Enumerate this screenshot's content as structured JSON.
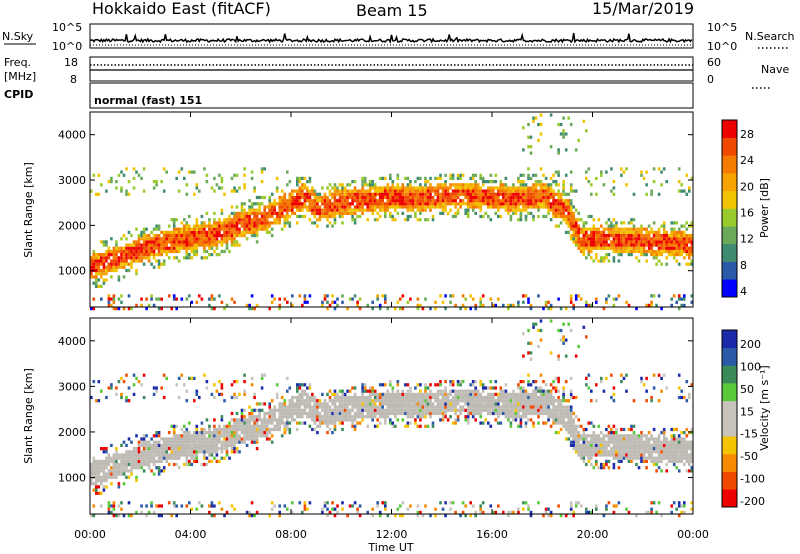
{
  "header": {
    "station": "Hokkaido East (fitACF)",
    "beam": "Beam 15",
    "date": "15/Mar/2019"
  },
  "top_panels": {
    "nsky_label": "N.Sky",
    "nsky_ticks": [
      "10^5",
      "10^0"
    ],
    "nsearch_label": "N.Search",
    "nsearch_ticks": [
      "10^5",
      "10^0"
    ],
    "freq_label_line1": "Freq.",
    "freq_label_line2": "[MHz]",
    "freq_ticks": [
      "18",
      "8"
    ],
    "nave_label": "Nave",
    "nave_ticks": [
      "60",
      "0"
    ],
    "cpid_label": "CPID",
    "cpid_text": "normal (fast) 151"
  },
  "colors": {
    "power_scale": [
      "#0000ff",
      "#2a5aa8",
      "#3f8b6f",
      "#6aa95a",
      "#9acb2c",
      "#f2c400",
      "#f6a200",
      "#f47a00",
      "#f04a00",
      "#ee0000"
    ],
    "velocity_scale": [
      "#ee0000",
      "#f04a00",
      "#f68a00",
      "#f4c400",
      "#c8c4bc",
      "#c8c4bc",
      "#59c93a",
      "#3a8a5a",
      "#2a5aa8",
      "#1a2aa8"
    ],
    "ground_scatter": "#bebab4"
  },
  "chart_data": [
    {
      "type": "heatmap",
      "name": "power",
      "xlabel": "",
      "ylabel": "Slant Range [km]",
      "yticks": [
        1000,
        2000,
        3000,
        4000
      ],
      "ylim": [
        200,
        4500
      ],
      "xlim_hours": [
        0,
        24
      ],
      "colorbar_label": "Power [dB]",
      "colorbar_ticks": [
        "28",
        "24",
        "20",
        "16",
        "12",
        "8",
        "4"
      ],
      "colorbar_range": [
        0,
        30
      ],
      "band_trace": {
        "hours": [
          0,
          1,
          2,
          3,
          4,
          5,
          6,
          7,
          8,
          8.5,
          9,
          10,
          11,
          12,
          13,
          14,
          15,
          16,
          17,
          18,
          18.5,
          19,
          19.5,
          20,
          21,
          22,
          23,
          24
        ],
        "range_km": [
          1100,
          1300,
          1500,
          1650,
          1750,
          1850,
          2050,
          2250,
          2500,
          2700,
          2400,
          2550,
          2600,
          2650,
          2600,
          2700,
          2700,
          2650,
          2600,
          2700,
          2500,
          2300,
          1700,
          1750,
          1700,
          1700,
          1650,
          1600
        ]
      }
    },
    {
      "type": "heatmap",
      "name": "velocity",
      "xlabel": "Time UT",
      "ylabel": "Slant Range [km]",
      "yticks": [
        1000,
        2000,
        3000,
        4000
      ],
      "ylim": [
        200,
        4500
      ],
      "xticks": [
        "00:00",
        "04:00",
        "08:00",
        "12:00",
        "16:00",
        "20:00",
        "00:00"
      ],
      "xtick_hours": [
        0,
        4,
        8,
        12,
        16,
        20,
        24
      ],
      "colorbar_label": "Velocity [m s⁻¹]",
      "colorbar_ticks": [
        "200",
        "100",
        "50",
        "15",
        "-15",
        "-50",
        "-100",
        "-200"
      ],
      "colorbar_range": [
        -250,
        250
      ]
    }
  ]
}
